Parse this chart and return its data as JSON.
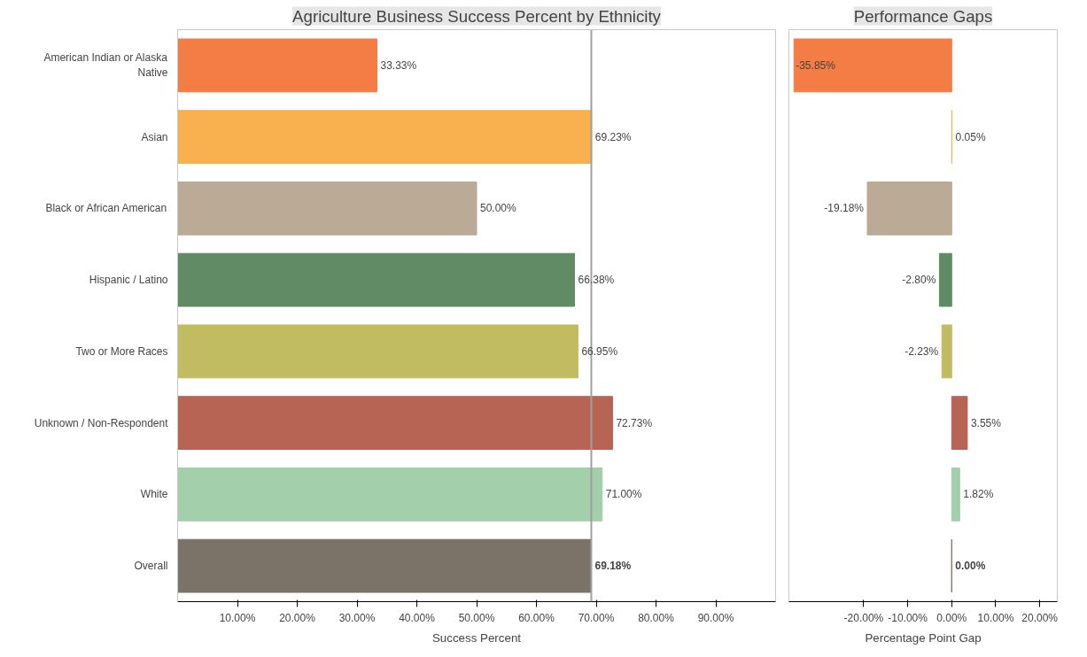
{
  "chart_data": [
    {
      "type": "bar",
      "orientation": "horizontal",
      "title": "Agriculture Business Success Percent by Ethnicity",
      "xlabel": "Success Percent",
      "categories": [
        "American Indian or Alaska Native",
        "Asian",
        "Black or African American",
        "Hispanic / Latino",
        "Two or More Races",
        "Unknown / Non-Respondent",
        "White",
        "Overall"
      ],
      "values": [
        33.33,
        69.23,
        50.0,
        66.38,
        66.95,
        72.73,
        71.0,
        69.18
      ],
      "colors": [
        "#f47c45",
        "#f9b04f",
        "#baaa96",
        "#618b64",
        "#c1bb61",
        "#b76454",
        "#a3cfaa",
        "#7c7368"
      ],
      "value_labels": [
        "33.33%",
        "69.23%",
        "50.00%",
        "66.38%",
        "66.95%",
        "72.73%",
        "71.00%",
        "69.18%"
      ],
      "xlim": [
        0,
        100
      ],
      "xticks": [
        {
          "value": 10,
          "label": "10.00%"
        },
        {
          "value": 20,
          "label": "20.00%"
        },
        {
          "value": 30,
          "label": "30.00%"
        },
        {
          "value": 40,
          "label": "40.00%"
        },
        {
          "value": 50,
          "label": "50.00%"
        },
        {
          "value": 60,
          "label": "60.00%"
        },
        {
          "value": 70,
          "label": "70.00%"
        },
        {
          "value": 80,
          "label": "80.00%"
        },
        {
          "value": 90,
          "label": "90.00%"
        }
      ],
      "ref_lines": [
        {
          "axis": "x",
          "value": 69.18,
          "color": "#a0a0a0"
        }
      ],
      "grid": false
    },
    {
      "type": "bar",
      "orientation": "horizontal",
      "title": "Performance Gaps",
      "xlabel": "Percentage Point Gap",
      "categories": [
        "American Indian or Alaska Native",
        "Asian",
        "Black or African American",
        "Hispanic / Latino",
        "Two or More Races",
        "Unknown / Non-Respondent",
        "White",
        "Overall"
      ],
      "values": [
        -35.85,
        0.05,
        -19.18,
        -2.8,
        -2.23,
        3.55,
        1.82,
        0.0
      ],
      "colors": [
        "#f47c45",
        "#f9b04f",
        "#baaa96",
        "#618b64",
        "#c1bb61",
        "#b76454",
        "#a3cfaa",
        "#7c7368"
      ],
      "value_labels": [
        "-35.85%",
        "0.05%",
        "-19.18%",
        "-2.80%",
        "-2.23%",
        "3.55%",
        "1.82%",
        "0.00%"
      ],
      "xlim": [
        -37,
        24
      ],
      "xticks": [
        {
          "value": -20,
          "label": "-20.00%"
        },
        {
          "value": -10,
          "label": "-10.00%"
        },
        {
          "value": 0,
          "label": "0.00%"
        },
        {
          "value": 10,
          "label": "10.00%"
        },
        {
          "value": 20,
          "label": "20.00%"
        }
      ],
      "tick_labels": "x",
      "grid": false
    }
  ]
}
